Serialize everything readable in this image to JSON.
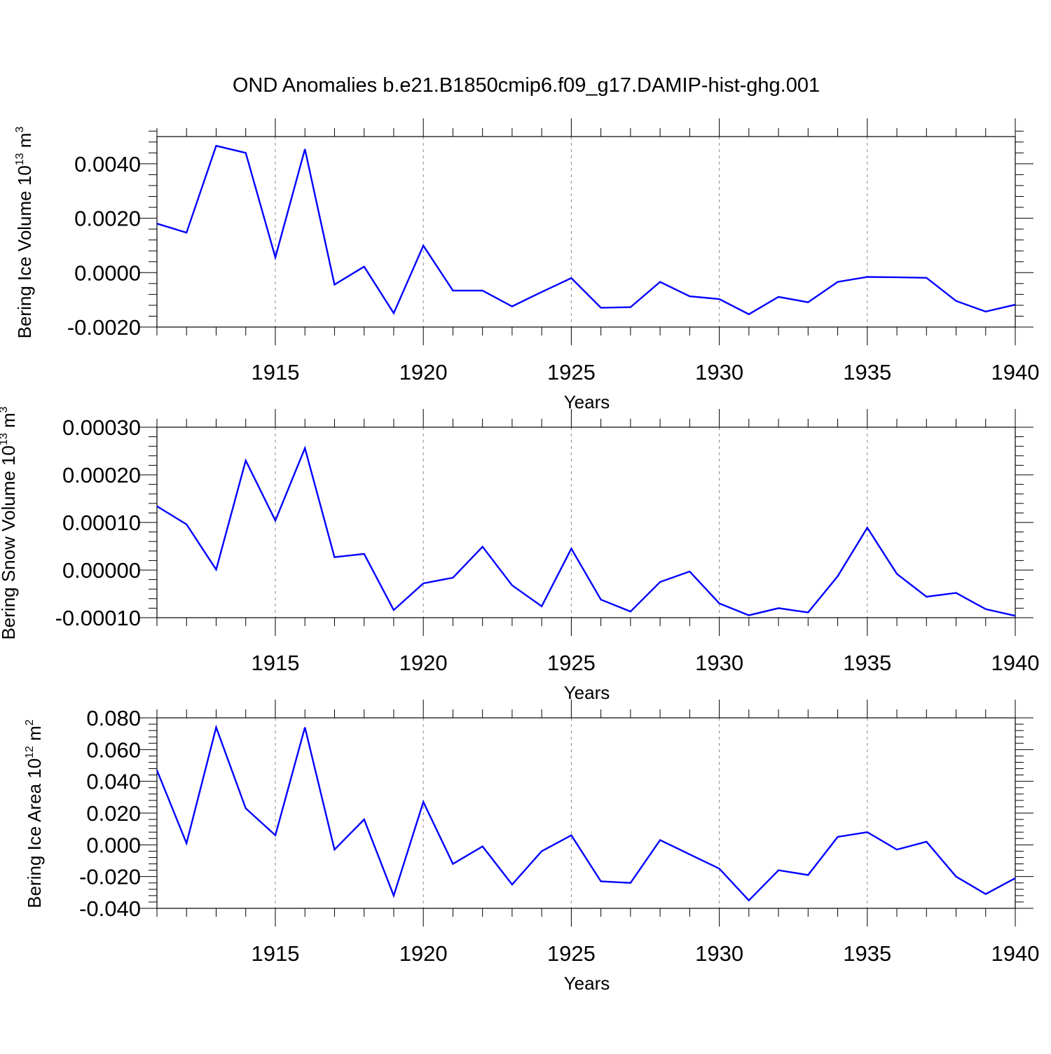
{
  "title": "OND Anomalies b.e21.B1850cmip6.f09_g17.DAMIP-hist-ghg.001",
  "line_color": "#0000ff",
  "grid_color": "#888888",
  "chart_data": [
    {
      "type": "line",
      "xlabel": "Years",
      "ylabel": {
        "text": "Bering Ice Volume 10",
        "exponent": "13",
        "unit": " m",
        "unit_exponent": "3"
      },
      "xlim": [
        1911,
        1940
      ],
      "ylim": [
        -0.002,
        0.005
      ],
      "xticks": [
        1915,
        1920,
        1925,
        1930,
        1935,
        1940
      ],
      "xtick_labels": [
        "1915",
        "1920",
        "1925",
        "1930",
        "1935",
        "1940"
      ],
      "yticks": [
        -0.002,
        0.0,
        0.002,
        0.004
      ],
      "ytick_labels": [
        "-0.0020",
        "0.0000",
        "0.0020",
        "0.0040"
      ],
      "yminor_step": 0.0004,
      "grid": "vertical dashed at major x ticks",
      "series": [
        {
          "name": "Bering Ice Volume",
          "x": [
            1911,
            1912,
            1913,
            1914,
            1915,
            1916,
            1917,
            1918,
            1919,
            1920,
            1921,
            1922,
            1923,
            1924,
            1925,
            1926,
            1927,
            1928,
            1929,
            1930,
            1931,
            1932,
            1933,
            1934,
            1935,
            1936,
            1937,
            1938,
            1939,
            1940
          ],
          "values": [
            0.0018,
            0.00147,
            0.00466,
            0.0044,
            0.00056,
            0.00454,
            -0.00044,
            0.00022,
            -0.00149,
            0.00099,
            -0.00066,
            -0.00066,
            -0.00124,
            -0.00071,
            -0.0002,
            -0.00129,
            -0.00127,
            -0.00034,
            -0.00087,
            -0.00097,
            -0.00153,
            -0.00089,
            -0.00109,
            -0.00034,
            -0.00016,
            -0.00017,
            -0.00019,
            -0.00104,
            -0.00143,
            -0.00118
          ]
        }
      ]
    },
    {
      "type": "line",
      "xlabel": "Years",
      "ylabel": {
        "text": "Bering Snow Volume 10",
        "exponent": "13",
        "unit": " m",
        "unit_exponent": "3"
      },
      "xlim": [
        1911,
        1940
      ],
      "ylim": [
        -0.0001,
        0.0003
      ],
      "xticks": [
        1915,
        1920,
        1925,
        1930,
        1935,
        1940
      ],
      "xtick_labels": [
        "1915",
        "1920",
        "1925",
        "1930",
        "1935",
        "1940"
      ],
      "yticks": [
        -0.0001,
        0.0,
        0.0001,
        0.0002,
        0.0003
      ],
      "ytick_labels": [
        "-0.00010",
        "0.00000",
        "0.00010",
        "0.00020",
        "0.00030"
      ],
      "yminor_step": 2e-05,
      "grid": "vertical dashed at major x ticks",
      "series": [
        {
          "name": "Bering Snow Volume",
          "x": [
            1911,
            1912,
            1913,
            1914,
            1915,
            1916,
            1917,
            1918,
            1919,
            1920,
            1921,
            1922,
            1923,
            1924,
            1925,
            1926,
            1927,
            1928,
            1929,
            1930,
            1931,
            1932,
            1933,
            1934,
            1935,
            1936,
            1937,
            1938,
            1939,
            1940
          ],
          "values": [
            0.000134,
            9.6e-05,
            1e-06,
            0.00023,
            0.000104,
            0.000256,
            2.7e-05,
            3.4e-05,
            -8.4e-05,
            -2.8e-05,
            -1.6e-05,
            4.9e-05,
            -3.2e-05,
            -7.6e-05,
            4.5e-05,
            -6.2e-05,
            -8.7e-05,
            -2.5e-05,
            -3e-06,
            -7e-05,
            -9.5e-05,
            -8e-05,
            -8.9e-05,
            -1.3e-05,
            8.9e-05,
            -8e-06,
            -5.6e-05,
            -4.8e-05,
            -8.2e-05,
            -9.6e-05
          ]
        }
      ]
    },
    {
      "type": "line",
      "xlabel": "Years",
      "ylabel": {
        "text": "Bering Ice Area 10",
        "exponent": "12",
        "unit": " m",
        "unit_exponent": "2"
      },
      "xlim": [
        1911,
        1940
      ],
      "ylim": [
        -0.04,
        0.08
      ],
      "xticks": [
        1915,
        1920,
        1925,
        1930,
        1935,
        1940
      ],
      "xtick_labels": [
        "1915",
        "1920",
        "1925",
        "1930",
        "1935",
        "1940"
      ],
      "yticks": [
        -0.04,
        -0.02,
        0.0,
        0.02,
        0.04,
        0.06,
        0.08
      ],
      "ytick_labels": [
        "-0.040",
        "-0.020",
        "0.000",
        "0.020",
        "0.040",
        "0.060",
        "0.080"
      ],
      "yminor_step": 0.004,
      "grid": "vertical dashed at major x ticks",
      "series": [
        {
          "name": "Bering Ice Area",
          "x": [
            1911,
            1912,
            1913,
            1914,
            1915,
            1916,
            1917,
            1918,
            1919,
            1920,
            1921,
            1922,
            1923,
            1924,
            1925,
            1926,
            1927,
            1928,
            1929,
            1930,
            1931,
            1932,
            1933,
            1934,
            1935,
            1936,
            1937,
            1938,
            1939,
            1940
          ],
          "values": [
            0.047,
            0.001,
            0.074,
            0.023,
            0.006,
            0.074,
            -0.003,
            0.016,
            -0.032,
            0.027,
            -0.012,
            -0.001,
            -0.025,
            -0.004,
            0.006,
            -0.023,
            -0.024,
            0.003,
            -0.006,
            -0.015,
            -0.035,
            -0.016,
            -0.019,
            0.005,
            0.008,
            -0.003,
            0.002,
            -0.02,
            -0.031,
            -0.021
          ]
        }
      ]
    }
  ]
}
